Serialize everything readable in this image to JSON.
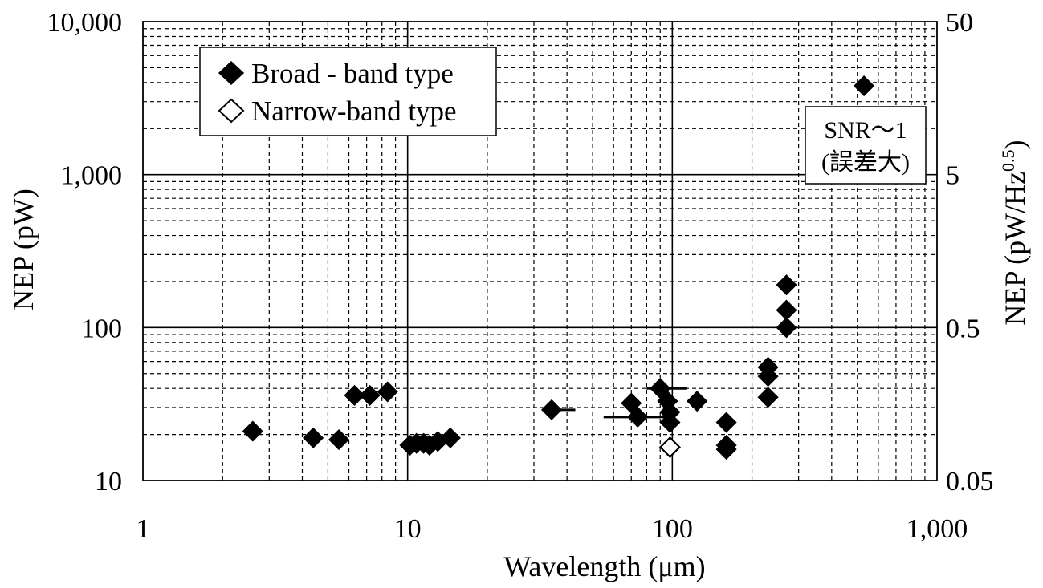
{
  "chart_data": {
    "type": "scatter",
    "xlabel": "Wavelength (μm)",
    "ylabel": "NEP (pW)",
    "y2label": "NEP (pW/Hz",
    "y2label_sup": "0.5",
    "y2label_close": ")",
    "xscale": "log",
    "yscale": "log",
    "xlim": [
      1,
      1000
    ],
    "ylim": [
      10,
      10000
    ],
    "y2lim": [
      0.05,
      50
    ],
    "grid": true,
    "legend_position": "top-left",
    "x_ticks": [
      "1",
      "10",
      "100",
      "1,000"
    ],
    "y_ticks": [
      "10",
      "100",
      "1,000",
      "10,000"
    ],
    "y2_ticks": [
      "0.05",
      "0.5",
      "5",
      "50"
    ],
    "annotation": {
      "line1": "SNR～1",
      "line2": "(誤差大)"
    },
    "series": [
      {
        "name": "Broad - band type",
        "marker": "filled-diamond",
        "color": "#000000",
        "points": [
          {
            "x": 2.6,
            "y": 21
          },
          {
            "x": 4.4,
            "y": 19
          },
          {
            "x": 5.5,
            "y": 18.5
          },
          {
            "x": 6.3,
            "y": 36
          },
          {
            "x": 7.2,
            "y": 36
          },
          {
            "x": 8.4,
            "y": 38
          },
          {
            "x": 10.2,
            "y": 17
          },
          {
            "x": 10.8,
            "y": 17.5
          },
          {
            "x": 11.5,
            "y": 17.5
          },
          {
            "x": 12.1,
            "y": 17
          },
          {
            "x": 13,
            "y": 18
          },
          {
            "x": 14.5,
            "y": 19
          },
          {
            "x": 35,
            "y": 29
          },
          {
            "x": 70,
            "y": 32
          },
          {
            "x": 74,
            "y": 26
          },
          {
            "x": 90,
            "y": 40
          },
          {
            "x": 96,
            "y": 33
          },
          {
            "x": 98,
            "y": 28
          },
          {
            "x": 98,
            "y": 24
          },
          {
            "x": 124,
            "y": 33
          },
          {
            "x": 160,
            "y": 24
          },
          {
            "x": 160,
            "y": 17
          },
          {
            "x": 160,
            "y": 16
          },
          {
            "x": 230,
            "y": 55
          },
          {
            "x": 230,
            "y": 48
          },
          {
            "x": 230,
            "y": 35
          },
          {
            "x": 270,
            "y": 190
          },
          {
            "x": 270,
            "y": 130
          },
          {
            "x": 270,
            "y": 100
          },
          {
            "x": 530,
            "y": 3800
          }
        ],
        "error_bars_x": [
          {
            "y": 29,
            "x_min": 33,
            "x_max": 43
          },
          {
            "y": 26,
            "x_min": 55,
            "x_max": 100
          },
          {
            "y": 40,
            "x_min": 80,
            "x_max": 113
          }
        ]
      },
      {
        "name": "Narrow-band type",
        "marker": "open-diamond",
        "color": "#000000",
        "points": [
          {
            "x": 98,
            "y": 16.5
          }
        ]
      }
    ]
  }
}
